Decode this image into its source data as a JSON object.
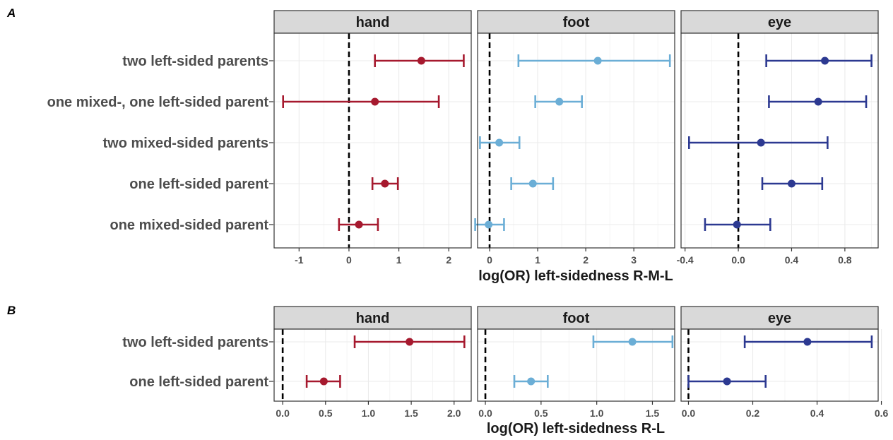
{
  "chart_data": [
    {
      "type": "forest",
      "panel_label": "A",
      "xlabel": "log(OR) left-sidedness R-M-L",
      "categories": [
        "two left-sided parents",
        "one mixed-, one left-sided parent",
        "two mixed-sided parents",
        "one left-sided parent",
        "one mixed-sided parent"
      ],
      "reference_line": 0,
      "grid": true,
      "facets": [
        {
          "name": "hand",
          "color": "#a6192e",
          "xlim": [
            -1.5,
            2.45
          ],
          "ticks": [
            -1,
            0,
            1,
            2
          ],
          "tick_labels": [
            "-1",
            "0",
            "1",
            "2"
          ],
          "estimates": [
            1.45,
            0.52,
            null,
            0.72,
            0.2
          ],
          "lower": [
            0.52,
            -1.32,
            null,
            0.47,
            -0.2
          ],
          "upper": [
            2.3,
            1.8,
            null,
            0.98,
            0.58
          ]
        },
        {
          "name": "foot",
          "color": "#6baed6",
          "xlim": [
            -0.25,
            3.85
          ],
          "ticks": [
            0,
            1,
            2,
            3
          ],
          "tick_labels": [
            "0",
            "1",
            "2",
            "3"
          ],
          "estimates": [
            2.25,
            1.45,
            0.2,
            0.9,
            -0.02
          ],
          "lower": [
            0.6,
            0.95,
            -0.2,
            0.45,
            -0.3
          ],
          "upper": [
            3.75,
            1.92,
            0.62,
            1.32,
            0.3
          ]
        },
        {
          "name": "eye",
          "color": "#2c3991",
          "xlim": [
            -0.43,
            1.05
          ],
          "ticks": [
            -0.4,
            0.0,
            0.4,
            0.8
          ],
          "tick_labels": [
            "-0.4",
            "0.0",
            "0.4",
            "0.8"
          ],
          "estimates": [
            0.65,
            0.6,
            0.17,
            0.4,
            -0.01
          ],
          "lower": [
            0.21,
            0.23,
            -0.37,
            0.18,
            -0.25
          ],
          "upper": [
            1.0,
            0.96,
            0.67,
            0.63,
            0.24
          ]
        }
      ]
    },
    {
      "type": "forest",
      "panel_label": "B",
      "xlabel": "log(OR) left-sidedness R-L",
      "categories": [
        "two left-sided parents",
        "one left-sided parent"
      ],
      "reference_line": 0,
      "grid": true,
      "facets": [
        {
          "name": "hand",
          "color": "#a6192e",
          "xlim": [
            -0.1,
            2.2
          ],
          "ticks": [
            0.0,
            0.5,
            1.0,
            1.5,
            2.0
          ],
          "tick_labels": [
            "0.0",
            "0.5",
            "1.0",
            "1.5",
            "2.0"
          ],
          "estimates": [
            1.48,
            0.48
          ],
          "lower": [
            0.84,
            0.28
          ],
          "upper": [
            2.12,
            0.67
          ]
        },
        {
          "name": "foot",
          "color": "#6baed6",
          "xlim": [
            -0.07,
            1.7
          ],
          "ticks": [
            0.0,
            0.5,
            1.0,
            1.5
          ],
          "tick_labels": [
            "0.0",
            "0.5",
            "1.0",
            "1.5"
          ],
          "estimates": [
            1.32,
            0.41
          ],
          "lower": [
            0.97,
            0.26
          ],
          "upper": [
            1.68,
            0.56
          ]
        },
        {
          "name": "eye",
          "color": "#2c3991",
          "xlim": [
            -0.023,
            0.59
          ],
          "ticks": [
            0.0,
            0.2,
            0.4,
            0.6
          ],
          "tick_labels": [
            "0.0",
            "0.2",
            "0.4",
            "0.6"
          ],
          "estimates": [
            0.37,
            0.12
          ],
          "lower": [
            0.175,
            0.0
          ],
          "upper": [
            0.57,
            0.24
          ]
        }
      ]
    }
  ]
}
